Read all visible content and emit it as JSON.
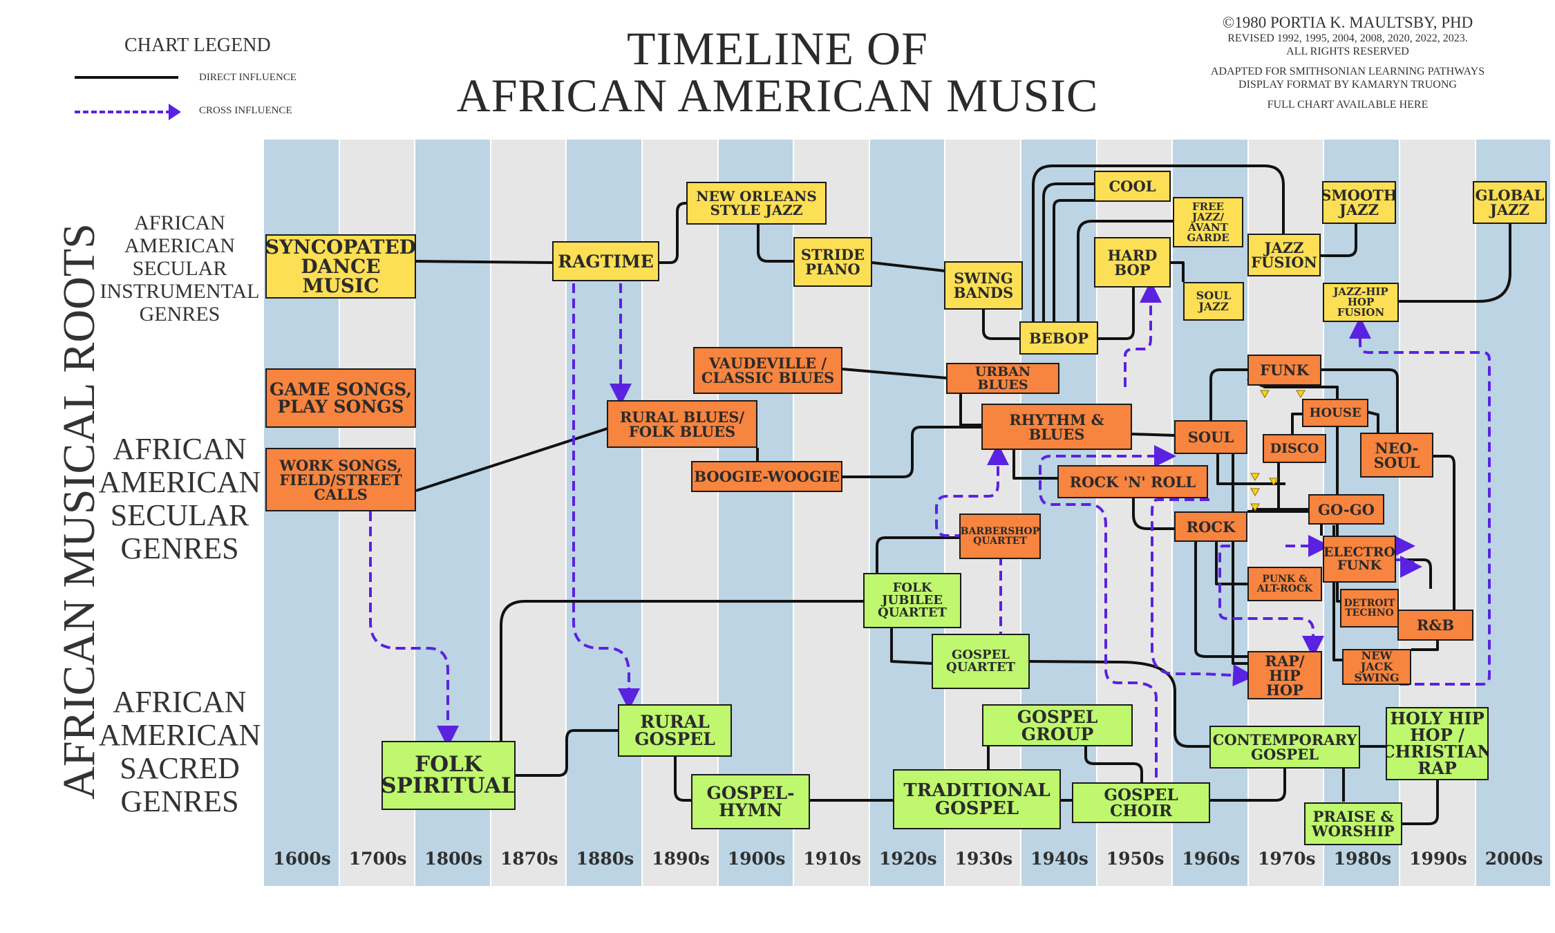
{
  "header": {
    "title_line1": "TIMELINE OF",
    "title_line2": "AFRICAN AMERICAN MUSIC"
  },
  "legend": {
    "title": "CHART LEGEND",
    "direct_label": "DIRECT INFLUENCE",
    "cross_label": "CROSS INFLUENCE",
    "direct_color": "#111111",
    "cross_color": "#5a22e0"
  },
  "credits": {
    "line1": "©1980 PORTIA K. MAULTSBY, PHD",
    "line2": "REVISED 1992, 1995, 2004, 2008, 2020, 2022, 2023.",
    "line3": "ALL RIGHTS RESERVED",
    "line4": "ADAPTED FOR SMITHSONIAN LEARNING PATHWAYS",
    "line5": "DISPLAY FORMAT BY KAMARYN TRUONG",
    "line6": "FULL CHART AVAILABLE HERE"
  },
  "side_label": "AFRICAN MUSICAL ROOTS",
  "categories": {
    "instrumental": "AFRICAN\nAMERICAN\nSECULAR\nINSTRUMENTAL\nGENRES",
    "secular": "AFRICAN\nAMERICAN\nSECULAR\nGENRES",
    "sacred": "AFRICAN\nAMERICAN\nSACRED\nGENRES"
  },
  "decades": [
    "1600s",
    "1700s",
    "1800s",
    "1870s",
    "1880s",
    "1890s",
    "1900s",
    "1910s",
    "1920s",
    "1930s",
    "1940s",
    "1950s",
    "1960s",
    "1970s",
    "1980s",
    "1990s",
    "2000s"
  ],
  "colors": {
    "column_blue": "#bcd4e3",
    "column_gray": "#e6e6e6",
    "instrumental_fill": "#fcdf55",
    "secular_fill": "#f7843f",
    "sacred_fill": "#bff76e"
  },
  "genres": {
    "syncopated": "SYNCOPATED\nDANCE MUSIC",
    "ragtime": "RAGTIME",
    "new_orleans": "NEW ORLEANS\nSTYLE JAZZ",
    "stride": "STRIDE\nPIANO",
    "swing": "SWING\nBANDS",
    "bebop": "BEBOP",
    "cool": "COOL",
    "free_jazz": "FREE JAZZ/\nAVANT\nGARDE",
    "hard_bop": "HARD\nBOP",
    "soul_jazz": "SOUL\nJAZZ",
    "jazz_fusion": "JAZZ\nFUSION",
    "smooth_jazz": "SMOOTH\nJAZZ",
    "global_jazz": "GLOBAL\nJAZZ",
    "jazz_hiphop": "JAZZ-HIP\nHOP FUSION",
    "game_songs": "GAME SONGS,\nPLAY SONGS",
    "work_songs": "WORK SONGS,\nFIELD/STREET\nCALLS",
    "rural_blues": "RURAL BLUES/\nFOLK BLUES",
    "vaudeville": "VAUDEVILLE /\nCLASSIC BLUES",
    "boogie": "BOOGIE-WOOGIE",
    "urban_blues": "URBAN BLUES",
    "rnb_classic": "RHYTHM &\nBLUES",
    "rock_n_roll": "ROCK 'N' ROLL",
    "barbershop": "BARBERSHOP\nQUARTET",
    "soul": "SOUL",
    "funk": "FUNK",
    "house": "HOUSE",
    "disco": "DISCO",
    "neo_soul": "NEO-\nSOUL",
    "gogo": "GO-GO",
    "rock": "ROCK",
    "electro_funk": "ELECTRO\nFUNK",
    "punk": "PUNK &\nALT-ROCK",
    "detroit": "DETROIT\nTECHNO",
    "rnb": "R&B",
    "rap": "RAP/ HIP\nHOP",
    "new_jack": "NEW JACK\nSWING",
    "folk_jubilee": "FOLK\nJUBILEE\nQUARTET",
    "gospel_quartet": "GOSPEL\nQUARTET",
    "folk_spiritual": "FOLK\nSPIRITUAL",
    "rural_gospel": "RURAL\nGOSPEL",
    "gospel_hymn": "GOSPEL-\nHYMN",
    "traditional_gospel": "TRADITIONAL\nGOSPEL",
    "gospel_group": "GOSPEL GROUP",
    "gospel_choir": "GOSPEL CHOIR",
    "contemporary_gospel": "CONTEMPORARY\nGOSPEL",
    "holy_hiphop": "HOLY HIP\nHOP /\nCHRISTIAN\nRAP",
    "praise_worship": "PRAISE &\nWORSHIP"
  }
}
